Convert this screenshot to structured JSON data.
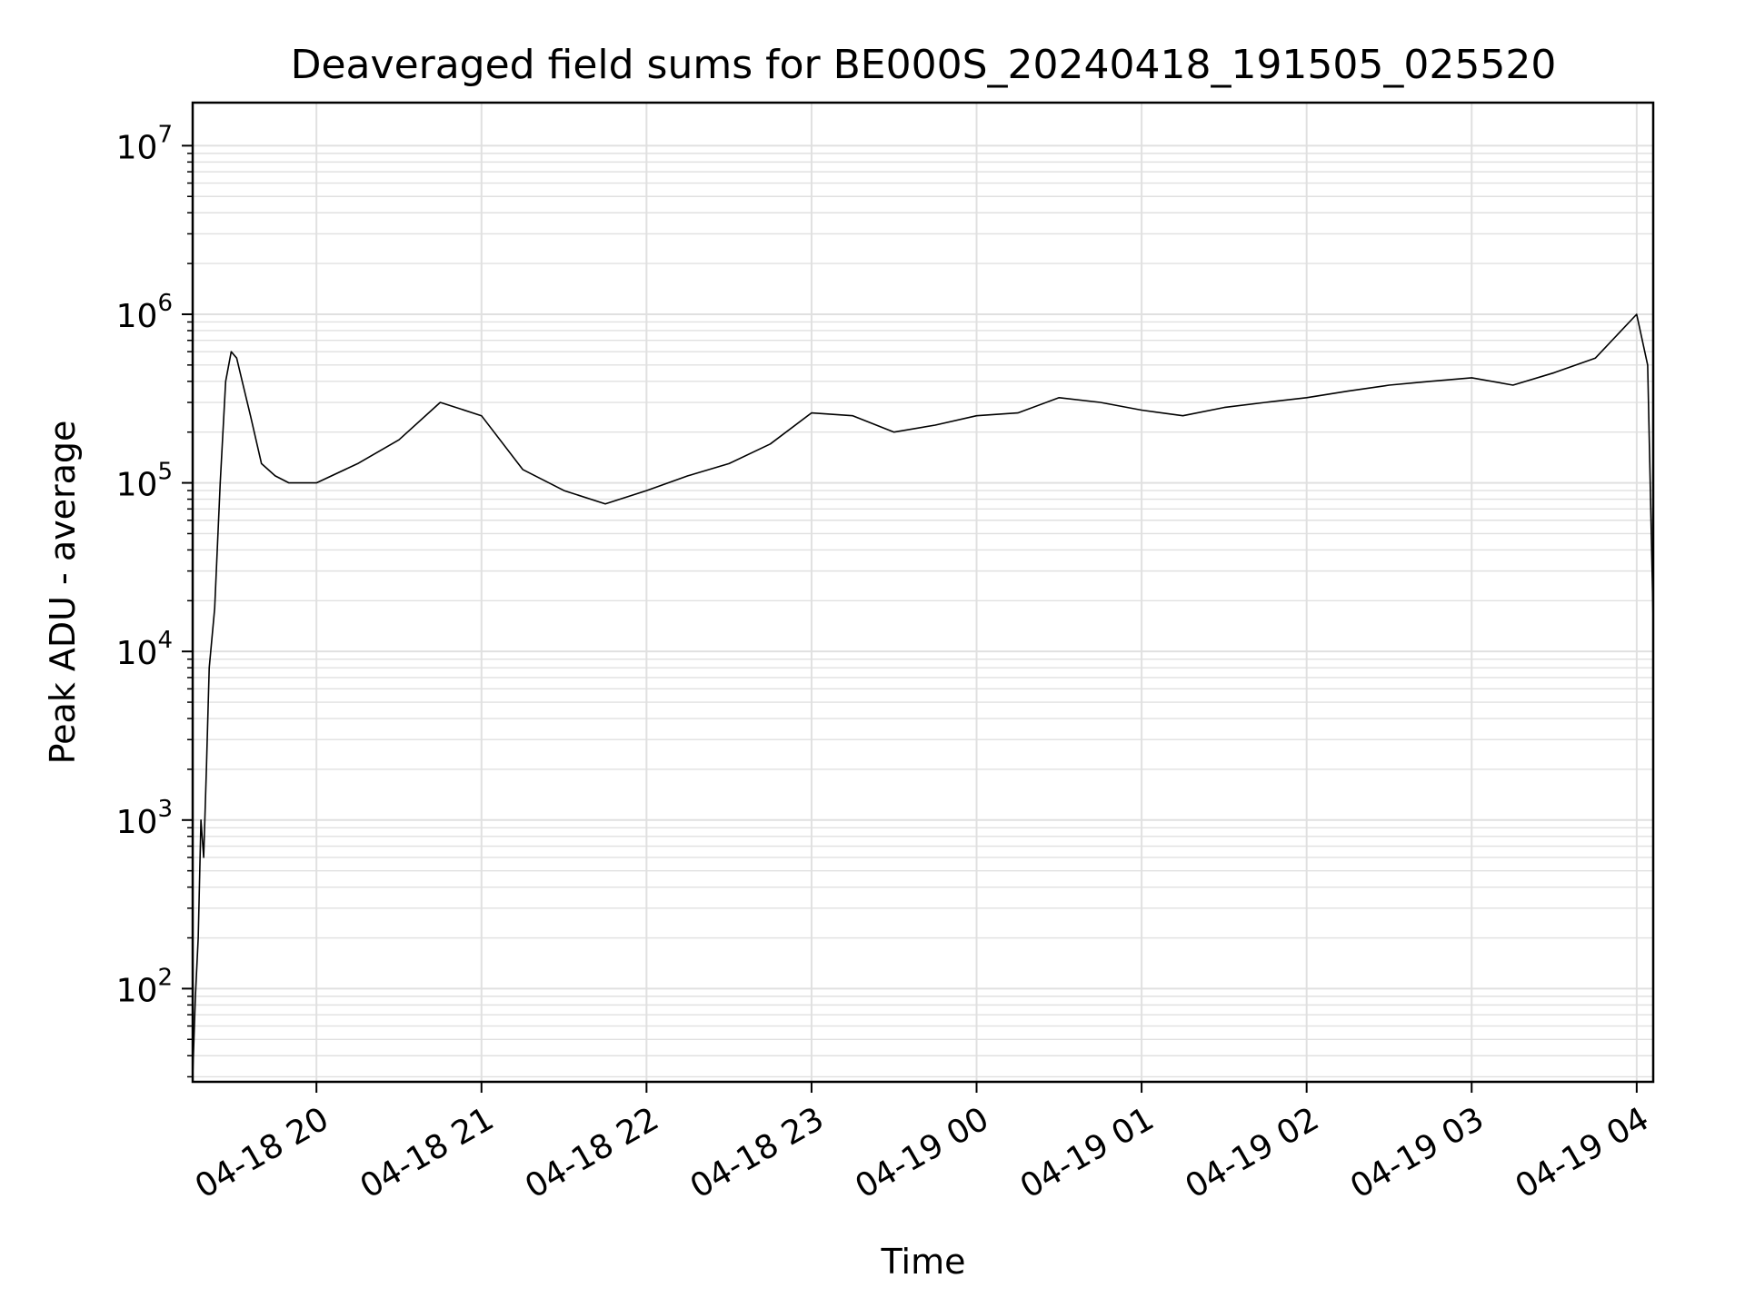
{
  "chart_data": {
    "type": "line",
    "title": "Deaveraged field sums for BE000S_20240418_191505_025520",
    "xlabel": "Time",
    "ylabel": "Peak ADU - average",
    "y_scale": "log",
    "ylim": [
      28,
      18000000
    ],
    "xlim": [
      "2024-04-18 19:15",
      "2024-04-19 04:06"
    ],
    "x_ticks": [
      {
        "label": "04-18 20",
        "time": "2024-04-18 20:00"
      },
      {
        "label": "04-18 21",
        "time": "2024-04-18 21:00"
      },
      {
        "label": "04-18 22",
        "time": "2024-04-18 22:00"
      },
      {
        "label": "04-18 23",
        "time": "2024-04-18 23:00"
      },
      {
        "label": "04-19 00",
        "time": "2024-04-19 00:00"
      },
      {
        "label": "04-19 01",
        "time": "2024-04-19 01:00"
      },
      {
        "label": "04-19 02",
        "time": "2024-04-19 02:00"
      },
      {
        "label": "04-19 03",
        "time": "2024-04-19 03:00"
      },
      {
        "label": "04-19 04",
        "time": "2024-04-19 04:00"
      }
    ],
    "y_ticks": [
      {
        "base": "10",
        "exp": "2",
        "value": 100
      },
      {
        "base": "10",
        "exp": "3",
        "value": 1000
      },
      {
        "base": "10",
        "exp": "4",
        "value": 10000
      },
      {
        "base": "10",
        "exp": "5",
        "value": 100000
      },
      {
        "base": "10",
        "exp": "6",
        "value": 1000000
      },
      {
        "base": "10",
        "exp": "7",
        "value": 10000000
      }
    ],
    "grid": true,
    "line_color": "#000000",
    "grid_color": "#e0e0e0",
    "series": [
      {
        "x": [
          "2024-04-18 19:15",
          "2024-04-18 19:16",
          "2024-04-18 19:17",
          "2024-04-18 19:18",
          "2024-04-18 19:19",
          "2024-04-18 19:20",
          "2024-04-18 19:21",
          "2024-04-18 19:22",
          "2024-04-18 19:23",
          "2024-04-18 19:25",
          "2024-04-18 19:27",
          "2024-04-18 19:29",
          "2024-04-18 19:31",
          "2024-04-18 19:33",
          "2024-04-18 19:36",
          "2024-04-18 19:40",
          "2024-04-18 19:45",
          "2024-04-18 19:50",
          "2024-04-18 20:00",
          "2024-04-18 20:15",
          "2024-04-18 20:30",
          "2024-04-18 20:45",
          "2024-04-18 21:00",
          "2024-04-18 21:15",
          "2024-04-18 21:30",
          "2024-04-18 21:45",
          "2024-04-18 22:00",
          "2024-04-18 22:15",
          "2024-04-18 22:30",
          "2024-04-18 22:45",
          "2024-04-18 23:00",
          "2024-04-18 23:15",
          "2024-04-18 23:30",
          "2024-04-18 23:45",
          "2024-04-19 00:00",
          "2024-04-19 00:15",
          "2024-04-19 00:30",
          "2024-04-19 00:45",
          "2024-04-19 01:00",
          "2024-04-19 01:15",
          "2024-04-19 01:30",
          "2024-04-19 01:45",
          "2024-04-19 02:00",
          "2024-04-19 02:15",
          "2024-04-19 02:30",
          "2024-04-19 02:45",
          "2024-04-19 03:00",
          "2024-04-19 03:15",
          "2024-04-19 03:30",
          "2024-04-19 03:45",
          "2024-04-19 04:00",
          "2024-04-19 04:04",
          "2024-04-19 04:06"
        ],
        "y": [
          30,
          90,
          200,
          1000,
          600,
          2000,
          8000,
          12000,
          18000,
          100000,
          400000,
          600000,
          550000,
          400000,
          250000,
          130000,
          110000,
          100000,
          100000,
          130000,
          180000,
          300000,
          250000,
          120000,
          90000,
          75000,
          90000,
          110000,
          130000,
          170000,
          260000,
          250000,
          200000,
          220000,
          250000,
          260000,
          320000,
          300000,
          270000,
          250000,
          280000,
          300000,
          320000,
          350000,
          380000,
          400000,
          420000,
          380000,
          450000,
          550000,
          1000000,
          500000,
          15000
        ]
      }
    ]
  }
}
